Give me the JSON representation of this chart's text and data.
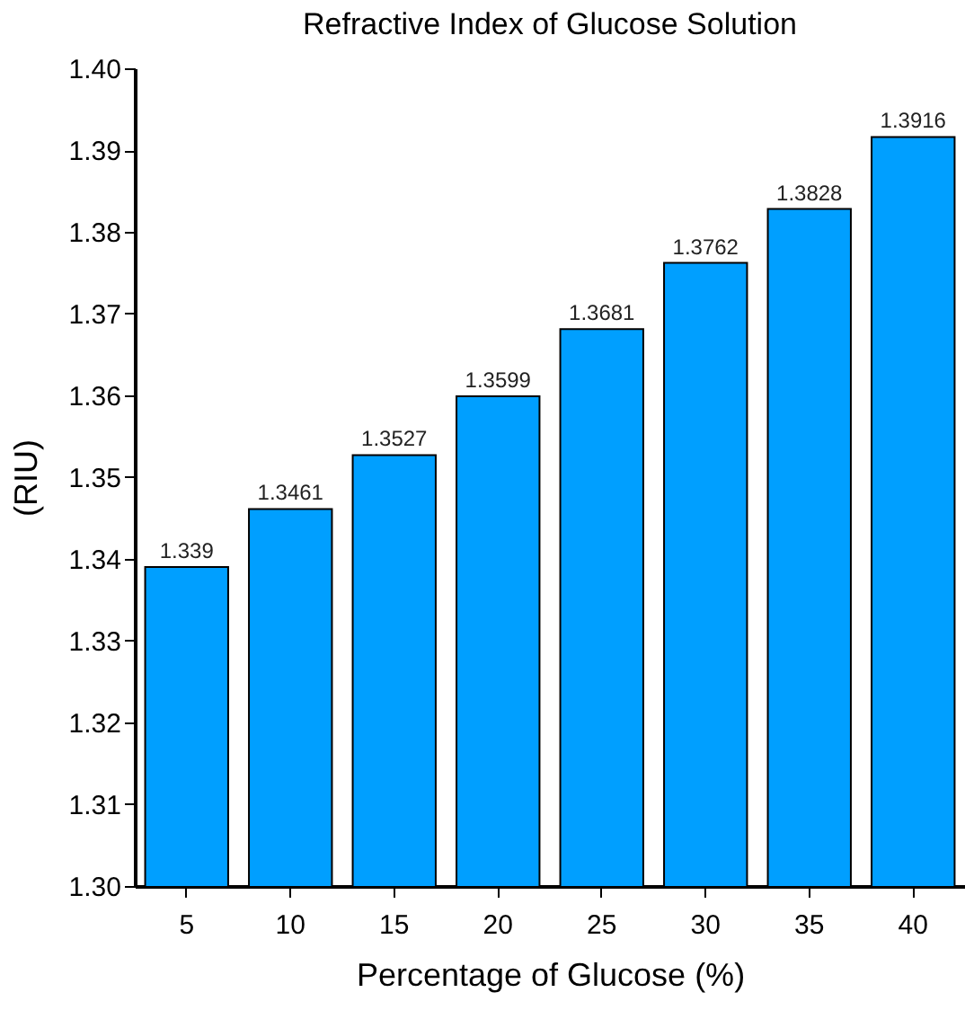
{
  "chart_data": {
    "type": "bar",
    "title": "Refractive Index of Glucose Solution",
    "xlabel": "Percentage of Glucose (%)",
    "ylabel": "(RIU)",
    "categories": [
      "5",
      "10",
      "15",
      "20",
      "25",
      "30",
      "35",
      "40"
    ],
    "values": [
      1.339,
      1.3461,
      1.3527,
      1.3599,
      1.3681,
      1.3762,
      1.3828,
      1.3916
    ],
    "color": "#009fff",
    "ylim": [
      1.3,
      1.4
    ],
    "yticks": [
      {
        "value": 1.3,
        "label": "1.30"
      },
      {
        "value": 1.31,
        "label": "1.31"
      },
      {
        "value": 1.32,
        "label": "1.32"
      },
      {
        "value": 1.33,
        "label": "1.33"
      },
      {
        "value": 1.34,
        "label": "1.34"
      },
      {
        "value": 1.35,
        "label": "1.35"
      },
      {
        "value": 1.36,
        "label": "1.36"
      },
      {
        "value": 1.37,
        "label": "1.37"
      },
      {
        "value": 1.38,
        "label": "1.38"
      },
      {
        "value": 1.39,
        "label": "1.39"
      },
      {
        "value": 1.4,
        "label": "1.40"
      }
    ],
    "data_labels": true
  }
}
